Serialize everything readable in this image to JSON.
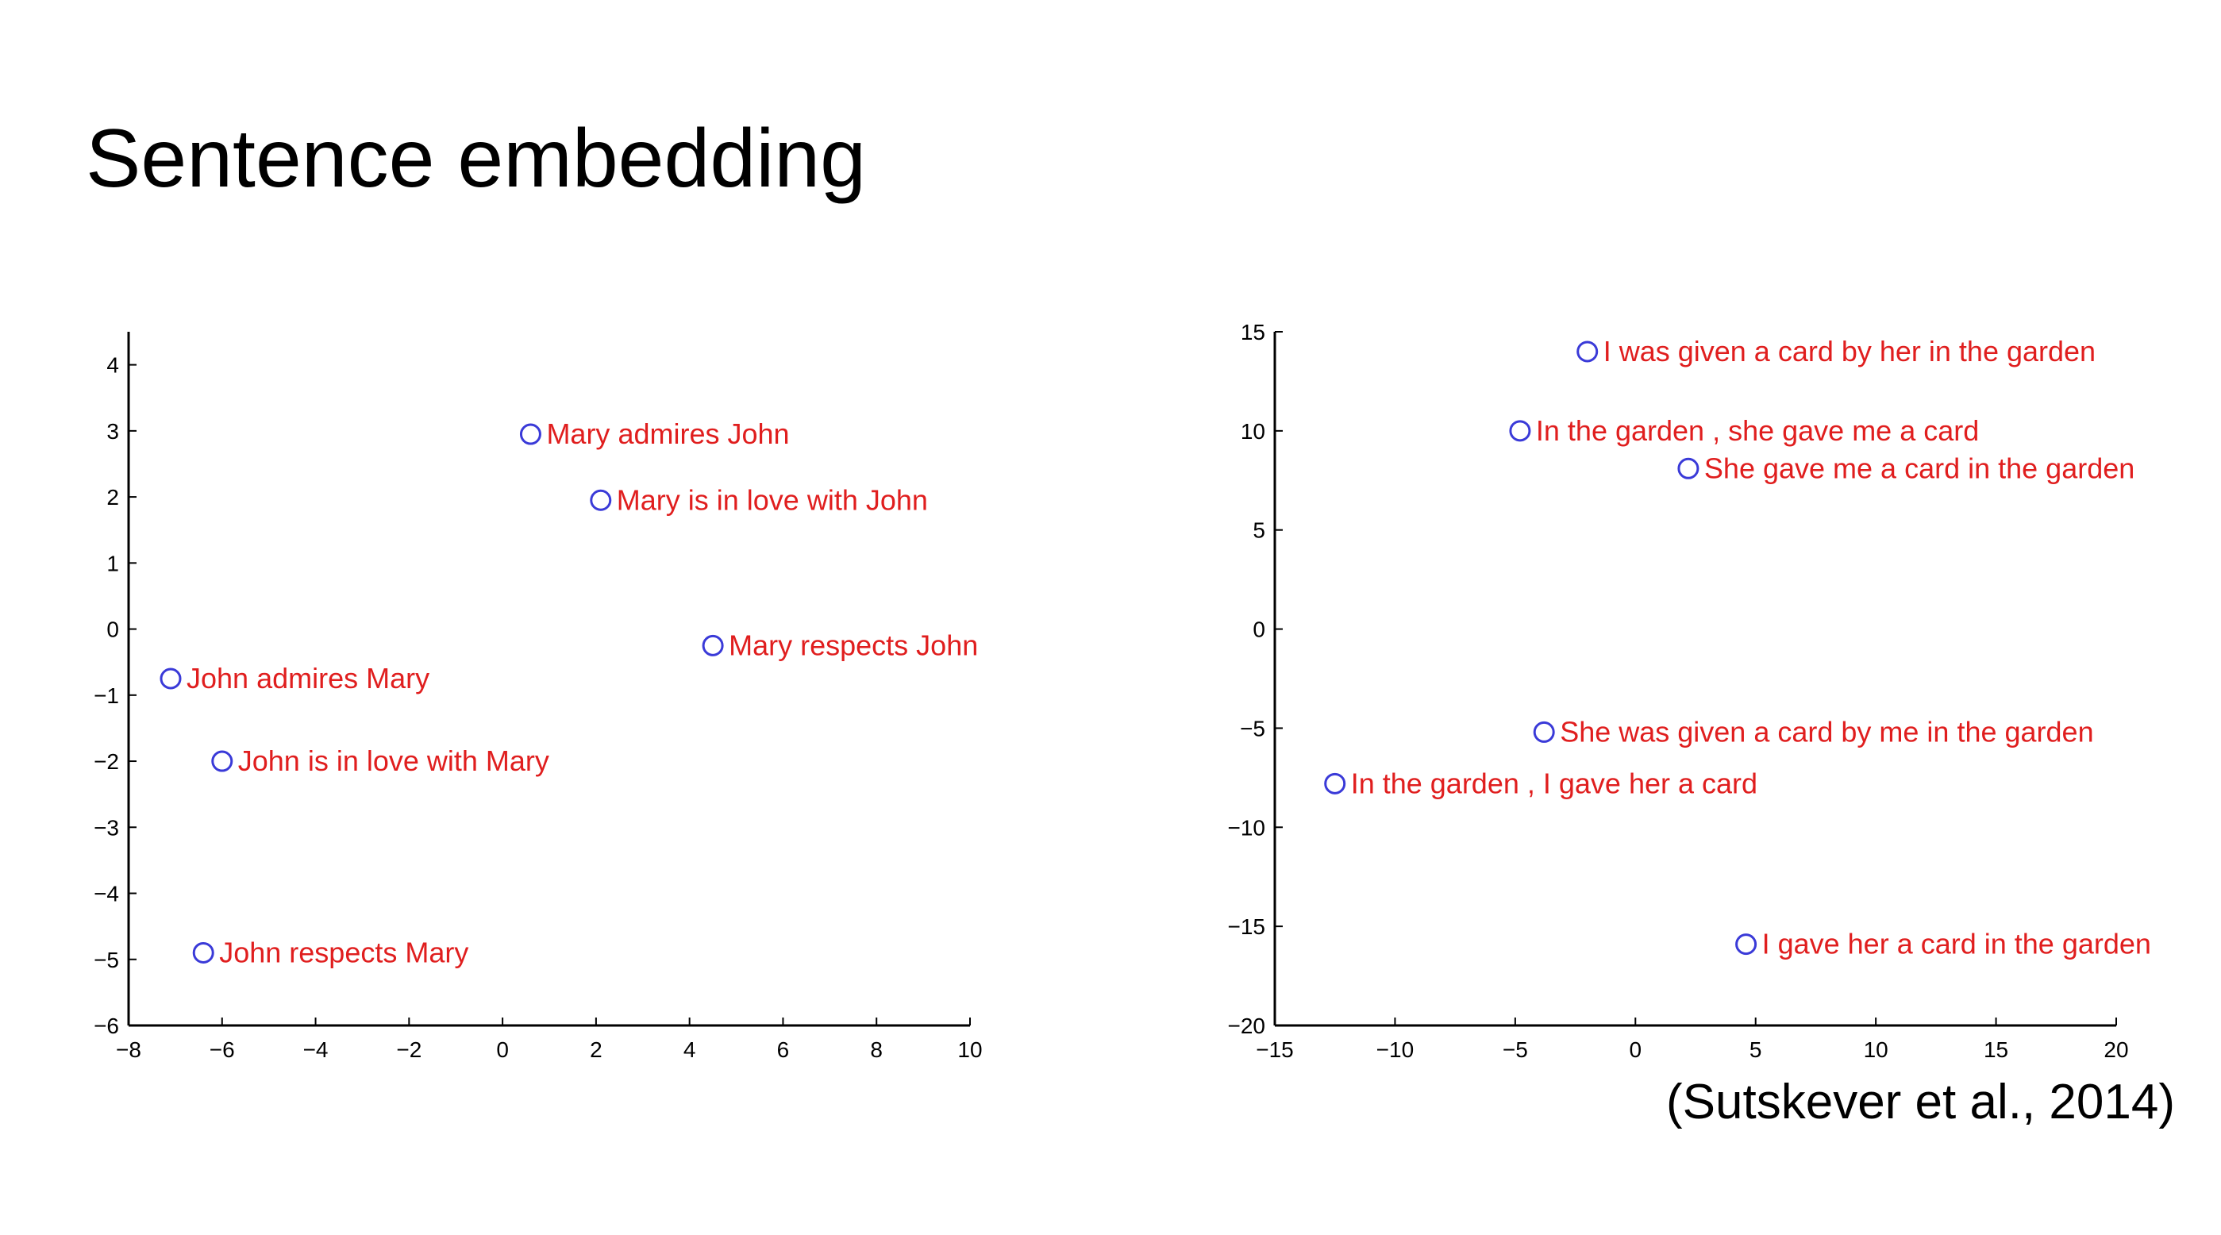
{
  "slide": {
    "title": "Sentence embedding",
    "citation": "(Sutskever et al., 2014)"
  },
  "colors": {
    "marker": "#3a3ad8",
    "label": "#e01e1e",
    "axis": "#000000"
  },
  "chart_data": [
    {
      "type": "scatter",
      "title": "",
      "xlabel": "",
      "ylabel": "",
      "xlim": [
        -8,
        10
      ],
      "ylim": [
        -6,
        4.5
      ],
      "xticks": [
        -8,
        -6,
        -4,
        -2,
        0,
        2,
        4,
        6,
        8,
        10
      ],
      "yticks": [
        -6,
        -5,
        -4,
        -3,
        -2,
        -1,
        0,
        1,
        2,
        3,
        4
      ],
      "points": [
        {
          "x": 0.6,
          "y": 2.95,
          "label": "Mary admires John"
        },
        {
          "x": 2.1,
          "y": 1.95,
          "label": "Mary is in love with John"
        },
        {
          "x": 4.5,
          "y": -0.25,
          "label": "Mary respects John"
        },
        {
          "x": -7.1,
          "y": -0.75,
          "label": "John admires Mary"
        },
        {
          "x": -6.0,
          "y": -2.0,
          "label": "John is in love with Mary"
        },
        {
          "x": -6.4,
          "y": -4.9,
          "label": "John respects Mary"
        }
      ]
    },
    {
      "type": "scatter",
      "title": "",
      "xlabel": "",
      "ylabel": "",
      "xlim": [
        -15,
        20
      ],
      "ylim": [
        -20,
        15
      ],
      "xticks": [
        -15,
        -10,
        -5,
        0,
        5,
        10,
        15,
        20
      ],
      "yticks": [
        -20,
        -15,
        -10,
        -5,
        0,
        5,
        10,
        15
      ],
      "points": [
        {
          "x": -2.0,
          "y": 14.0,
          "label": "I was given a card by her in the garden"
        },
        {
          "x": -4.8,
          "y": 10.0,
          "label": "In the garden , she gave me a card"
        },
        {
          "x": 2.2,
          "y": 8.1,
          "label": "She gave me a card in the garden"
        },
        {
          "x": -3.8,
          "y": -5.2,
          "label": "She was given a card by me in the garden"
        },
        {
          "x": -12.5,
          "y": -7.8,
          "label": "In the garden , I gave her a card"
        },
        {
          "x": 4.6,
          "y": -15.9,
          "label": "I gave her a card in the garden"
        }
      ]
    }
  ]
}
